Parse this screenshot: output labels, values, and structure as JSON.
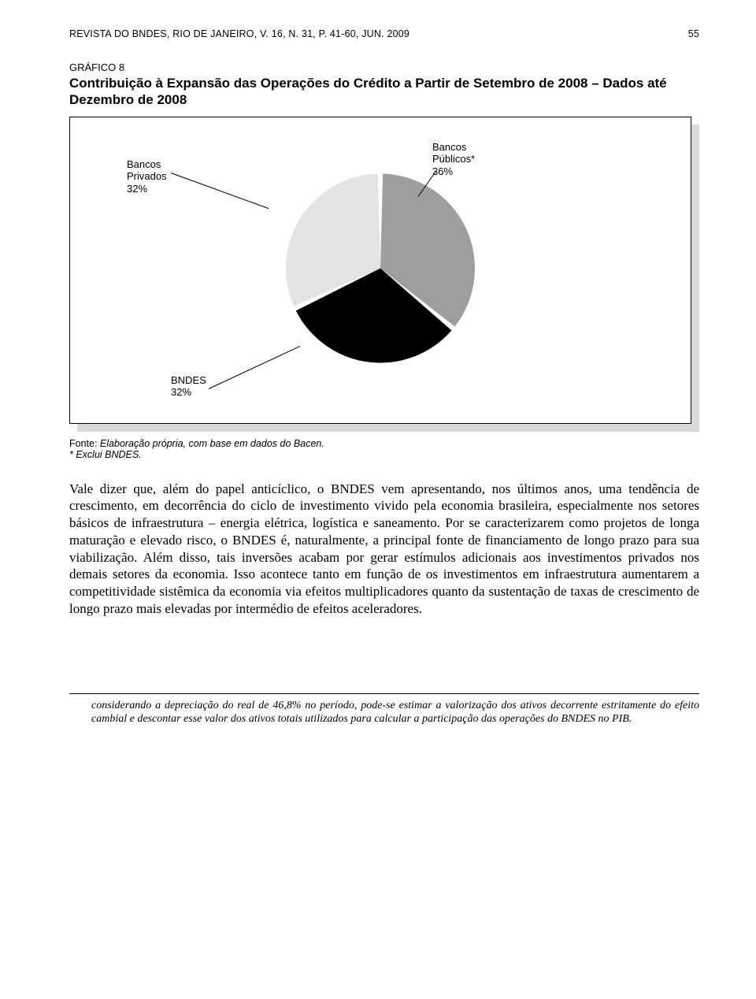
{
  "header": {
    "left": "REVISTA DO BNDES, RIO DE JANEIRO, V. 16, N. 31, P. 41-60, JUN. 2009",
    "page": "55"
  },
  "figure": {
    "label": "GRÁFICO 8",
    "title": "Contribuição à Expansão das Operações do Crédito a Partir de Setembro de 2008 – Dados até Dezembro de 2008",
    "chart": {
      "type": "pie",
      "background_color": "#ffffff",
      "shadow_color": "#d9d9d9",
      "border_color": "#000000",
      "size": 240,
      "gap_deg": 3,
      "slices": [
        {
          "name": "Bancos Públicos*",
          "value": 36,
          "color": "#9e9e9e",
          "label_line1": "Bancos",
          "label_line2": "Públicos*",
          "label_line3": "36%"
        },
        {
          "name": "BNDES",
          "value": 32,
          "color": "#000000",
          "label_line1": "BNDES",
          "label_line2": "32%",
          "label_line3": ""
        },
        {
          "name": "Bancos Privados",
          "value": 32,
          "color": "#e3e3e3",
          "label_line1": "Bancos",
          "label_line2": "Privados",
          "label_line3": "32%"
        }
      ],
      "label_font_size": 13,
      "label_font_family": "Arial"
    },
    "source_prefix": "Fonte: ",
    "source_text": "Elaboração própria, com base em dados do Bacen.",
    "note": "* Exclui BNDES."
  },
  "paragraph": "Vale dizer que, além do papel anticíclico, o BNDES vem apresentando, nos últimos anos, uma tendência de crescimento, em decorrência do ciclo de investimento vivido pela economia brasileira, especialmente nos setores básicos de infraestrutura – energia elétrica, logística e saneamento. Por se caracterizarem como projetos de longa maturação e elevado risco, o BNDES é, naturalmente, a principal fonte de financiamento de longo prazo para sua viabilização. Além disso, tais inversões acabam por gerar estímulos adicionais aos investimentos privados nos demais setores da economia. Isso acontece tanto em função de os investimentos em infraestrutura aumentarem a competitividade sistêmica da economia via efeitos multiplicadores quanto da sustentação de taxas de crescimento de longo prazo mais elevadas por intermédio de efeitos aceleradores.",
  "footnote": "considerando a depreciação do real de 46,8% no período, pode-se estimar a valorização dos ativos decorrente estritamente do efeito cambial e descontar esse valor dos ativos totais utilizados para calcular a participação das operações do BNDES no PIB."
}
